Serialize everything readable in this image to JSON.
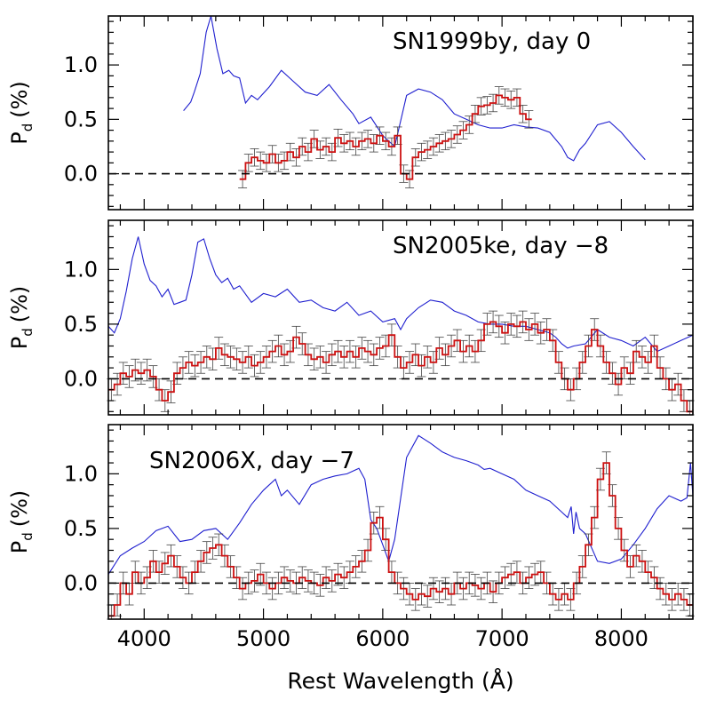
{
  "colors": {
    "flux": "#1f1fcf",
    "polarization": "#cc1111",
    "frame": "#000000"
  },
  "chart_data": {
    "type": "line",
    "shared_x_axis": {
      "label": "Rest Wavelength (Å)",
      "range": [
        3700,
        8600
      ],
      "tick_labels": [
        "4000",
        "5000",
        "6000",
        "7000",
        "8000"
      ],
      "tick_values": [
        4000,
        5000,
        6000,
        7000,
        8000
      ]
    },
    "y_axis": {
      "label": "P_d (%)",
      "label_main": "P",
      "label_sub": "d",
      "label_rest": "(%)",
      "range": [
        -0.33,
        1.45
      ],
      "tick_labels": [
        "0.0",
        "0.5",
        "1.0"
      ],
      "tick_values": [
        0.0,
        0.5,
        1.0
      ]
    },
    "panels": [
      {
        "title": "SN1999by, day 0",
        "series": [
          {
            "name": "flux",
            "style": "line",
            "x": [
              4330,
              4390,
              4420,
              4470,
              4520,
              4560,
              4610,
              4660,
              4710,
              4750,
              4800,
              4850,
              4900,
              4950,
              5050,
              5150,
              5250,
              5350,
              5450,
              5550,
              5650,
              5750,
              5800,
              5900,
              6000,
              6100,
              6200,
              6300,
              6400,
              6500,
              6600,
              6700,
              6800,
              6900,
              7000,
              7100,
              7200,
              7300,
              7400,
              7500,
              7550,
              7600,
              7650,
              7700,
              7800,
              7900,
              8000,
              8100,
              8200
            ],
            "y": [
              0.58,
              0.66,
              0.75,
              0.92,
              1.3,
              1.45,
              1.15,
              0.92,
              0.95,
              0.9,
              0.88,
              0.65,
              0.72,
              0.68,
              0.8,
              0.95,
              0.85,
              0.75,
              0.72,
              0.82,
              0.68,
              0.55,
              0.46,
              0.52,
              0.35,
              0.25,
              0.72,
              0.78,
              0.75,
              0.68,
              0.55,
              0.5,
              0.45,
              0.42,
              0.42,
              0.45,
              0.43,
              0.42,
              0.38,
              0.25,
              0.15,
              0.12,
              0.22,
              0.28,
              0.45,
              0.48,
              0.38,
              0.25,
              0.13
            ]
          },
          {
            "name": "polarization",
            "style": "step",
            "x": [
              4800,
              4850,
              4900,
              4950,
              5000,
              5050,
              5100,
              5150,
              5200,
              5250,
              5300,
              5350,
              5400,
              5450,
              5500,
              5550,
              5600,
              5650,
              5700,
              5750,
              5800,
              5850,
              5900,
              5950,
              6000,
              6050,
              6100,
              6150,
              6200,
              6250,
              6300,
              6350,
              6400,
              6450,
              6500,
              6550,
              6600,
              6650,
              6700,
              6750,
              6800,
              6850,
              6900,
              6950,
              7000,
              7050,
              7100,
              7150,
              7200
            ],
            "y": [
              -0.05,
              0.1,
              0.15,
              0.12,
              0.1,
              0.18,
              0.1,
              0.12,
              0.2,
              0.15,
              0.25,
              0.2,
              0.32,
              0.22,
              0.25,
              0.2,
              0.33,
              0.28,
              0.3,
              0.25,
              0.3,
              0.32,
              0.28,
              0.35,
              0.3,
              0.25,
              0.35,
              0.0,
              -0.05,
              0.15,
              0.2,
              0.22,
              0.25,
              0.28,
              0.3,
              0.32,
              0.36,
              0.4,
              0.45,
              0.55,
              0.62,
              0.63,
              0.65,
              0.72,
              0.7,
              0.68,
              0.7,
              0.55,
              0.5
            ],
            "err": 0.08
          }
        ]
      },
      {
        "title": "SN2005ke, day −8",
        "series": [
          {
            "name": "flux",
            "style": "line",
            "x": [
              3700,
              3750,
              3800,
              3850,
              3900,
              3950,
              4000,
              4050,
              4100,
              4150,
              4200,
              4250,
              4300,
              4350,
              4400,
              4450,
              4500,
              4550,
              4600,
              4650,
              4700,
              4750,
              4800,
              4900,
              5000,
              5100,
              5200,
              5300,
              5400,
              5500,
              5600,
              5700,
              5800,
              5900,
              6000,
              6100,
              6150,
              6200,
              6300,
              6400,
              6500,
              6600,
              6700,
              6800,
              6900,
              7000,
              7100,
              7200,
              7300,
              7400,
              7450,
              7500,
              7550,
              7600,
              7700,
              7800,
              7900,
              8000,
              8100,
              8200,
              8300,
              8400,
              8500,
              8600
            ],
            "y": [
              0.48,
              0.42,
              0.55,
              0.8,
              1.1,
              1.3,
              1.05,
              0.9,
              0.85,
              0.75,
              0.82,
              0.68,
              0.7,
              0.72,
              0.95,
              1.25,
              1.28,
              1.1,
              0.95,
              0.88,
              0.92,
              0.82,
              0.85,
              0.7,
              0.78,
              0.75,
              0.82,
              0.7,
              0.72,
              0.65,
              0.62,
              0.7,
              0.58,
              0.62,
              0.52,
              0.55,
              0.45,
              0.55,
              0.65,
              0.72,
              0.7,
              0.62,
              0.58,
              0.52,
              0.5,
              0.5,
              0.48,
              0.48,
              0.45,
              0.42,
              0.38,
              0.32,
              0.28,
              0.3,
              0.32,
              0.45,
              0.38,
              0.35,
              0.3,
              0.38,
              0.25,
              0.3,
              0.35,
              0.4
            ],
            "also": [
              3700,
              8600
            ]
          },
          {
            "name": "polarization",
            "style": "step",
            "x": [
              3700,
              3750,
              3800,
              3850,
              3900,
              3950,
              4000,
              4050,
              4100,
              4150,
              4200,
              4250,
              4300,
              4350,
              4400,
              4450,
              4500,
              4550,
              4600,
              4650,
              4700,
              4750,
              4800,
              4850,
              4900,
              4950,
              5000,
              5050,
              5100,
              5150,
              5200,
              5250,
              5300,
              5350,
              5400,
              5450,
              5500,
              5550,
              5600,
              5650,
              5700,
              5750,
              5800,
              5850,
              5900,
              5950,
              6000,
              6050,
              6100,
              6150,
              6200,
              6250,
              6300,
              6350,
              6400,
              6450,
              6500,
              6550,
              6600,
              6650,
              6700,
              6750,
              6800,
              6850,
              6900,
              6950,
              7000,
              7050,
              7100,
              7150,
              7200,
              7250,
              7300,
              7350,
              7400,
              7450,
              7500,
              7550,
              7600,
              7650,
              7700,
              7750,
              7800,
              7850,
              7900,
              7950,
              8000,
              8050,
              8100,
              8150,
              8200,
              8250,
              8300,
              8350,
              8400,
              8450,
              8500,
              8550
            ],
            "y": [
              -0.1,
              -0.05,
              0.05,
              0.02,
              0.08,
              0.05,
              0.08,
              0.02,
              -0.1,
              -0.2,
              -0.12,
              0.05,
              0.1,
              0.15,
              0.12,
              0.15,
              0.2,
              0.18,
              0.28,
              0.22,
              0.2,
              0.18,
              0.15,
              0.2,
              0.12,
              0.15,
              0.2,
              0.25,
              0.3,
              0.22,
              0.25,
              0.38,
              0.32,
              0.22,
              0.18,
              0.2,
              0.15,
              0.22,
              0.25,
              0.2,
              0.25,
              0.2,
              0.28,
              0.25,
              0.22,
              0.28,
              0.3,
              0.4,
              0.2,
              0.1,
              0.15,
              0.22,
              0.12,
              0.2,
              0.15,
              0.28,
              0.22,
              0.3,
              0.35,
              0.25,
              0.3,
              0.25,
              0.35,
              0.5,
              0.52,
              0.48,
              0.42,
              0.5,
              0.48,
              0.52,
              0.45,
              0.5,
              0.42,
              0.45,
              0.35,
              0.15,
              0.0,
              -0.1,
              0.0,
              0.15,
              0.3,
              0.45,
              0.3,
              0.15,
              0.05,
              -0.05,
              0.1,
              0.05,
              0.25,
              0.2,
              0.15,
              0.3,
              0.1,
              0.0,
              -0.1,
              -0.05,
              -0.2,
              -0.3
            ],
            "err": 0.1
          }
        ]
      },
      {
        "title": "SN2006X, day −7",
        "series": [
          {
            "name": "flux",
            "style": "line",
            "x": [
              3700,
              3800,
              3900,
              4000,
              4100,
              4200,
              4300,
              4400,
              4500,
              4600,
              4700,
              4800,
              4900,
              5000,
              5100,
              5150,
              5200,
              5300,
              5400,
              5500,
              5600,
              5700,
              5800,
              5850,
              5900,
              5950,
              6000,
              6050,
              6100,
              6200,
              6300,
              6400,
              6500,
              6600,
              6700,
              6800,
              6850,
              6900,
              7000,
              7100,
              7200,
              7300,
              7400,
              7500,
              7550,
              7580,
              7600,
              7620,
              7650,
              7700,
              7800,
              7900,
              8000,
              8100,
              8200,
              8300,
              8400,
              8500,
              8550,
              8580,
              8600
            ],
            "y": [
              0.08,
              0.25,
              0.32,
              0.38,
              0.48,
              0.52,
              0.38,
              0.4,
              0.48,
              0.5,
              0.4,
              0.55,
              0.72,
              0.85,
              0.95,
              0.8,
              0.85,
              0.72,
              0.9,
              0.95,
              0.98,
              1.0,
              1.05,
              0.95,
              0.58,
              0.5,
              0.35,
              0.2,
              0.4,
              1.15,
              1.35,
              1.28,
              1.2,
              1.15,
              1.12,
              1.08,
              1.04,
              1.05,
              1.0,
              0.95,
              0.85,
              0.8,
              0.75,
              0.65,
              0.6,
              0.7,
              0.45,
              0.65,
              0.5,
              0.45,
              0.2,
              0.18,
              0.22,
              0.35,
              0.5,
              0.68,
              0.8,
              0.75,
              0.78,
              1.1,
              0.8
            ],
            "also": [
              3700,
              8600
            ]
          },
          {
            "name": "polarization",
            "style": "step",
            "x": [
              3700,
              3750,
              3800,
              3850,
              3900,
              3950,
              4000,
              4050,
              4100,
              4150,
              4200,
              4250,
              4300,
              4350,
              4400,
              4450,
              4500,
              4550,
              4600,
              4650,
              4700,
              4750,
              4800,
              4850,
              4900,
              4950,
              5000,
              5050,
              5100,
              5150,
              5200,
              5250,
              5300,
              5350,
              5400,
              5450,
              5500,
              5550,
              5600,
              5650,
              5700,
              5750,
              5800,
              5850,
              5900,
              5950,
              6000,
              6050,
              6100,
              6150,
              6200,
              6250,
              6300,
              6350,
              6400,
              6450,
              6500,
              6550,
              6600,
              6650,
              6700,
              6750,
              6800,
              6850,
              6900,
              6950,
              7000,
              7050,
              7100,
              7150,
              7200,
              7250,
              7300,
              7350,
              7400,
              7450,
              7500,
              7550,
              7600,
              7650,
              7700,
              7750,
              7800,
              7850,
              7900,
              7950,
              8000,
              8050,
              8100,
              8150,
              8200,
              8250,
              8300,
              8350,
              8400,
              8450,
              8500,
              8550
            ],
            "y": [
              -0.3,
              -0.2,
              0.0,
              -0.1,
              0.1,
              0.0,
              0.05,
              0.2,
              0.1,
              0.18,
              0.25,
              0.15,
              0.05,
              0.0,
              0.1,
              0.2,
              0.28,
              0.32,
              0.35,
              0.25,
              0.15,
              0.05,
              -0.05,
              0.0,
              0.02,
              0.08,
              0.0,
              -0.05,
              0.0,
              0.05,
              0.02,
              0.0,
              0.05,
              0.02,
              0.0,
              -0.02,
              0.05,
              0.02,
              0.08,
              0.05,
              0.1,
              0.15,
              0.2,
              0.3,
              0.55,
              0.6,
              0.4,
              0.1,
              0.0,
              -0.05,
              -0.1,
              -0.15,
              -0.1,
              -0.12,
              -0.05,
              -0.08,
              -0.05,
              -0.1,
              0.0,
              -0.05,
              0.0,
              -0.02,
              -0.05,
              0.0,
              -0.08,
              0.0,
              0.05,
              0.08,
              0.1,
              0.0,
              0.05,
              0.08,
              0.1,
              0.0,
              -0.1,
              -0.15,
              -0.1,
              -0.15,
              0.0,
              0.15,
              0.35,
              0.6,
              0.95,
              1.1,
              0.8,
              0.5,
              0.3,
              0.15,
              0.25,
              0.2,
              0.1,
              0.05,
              -0.05,
              -0.1,
              -0.15,
              -0.1,
              -0.15,
              -0.2
            ],
            "err": 0.1
          }
        ]
      }
    ]
  }
}
